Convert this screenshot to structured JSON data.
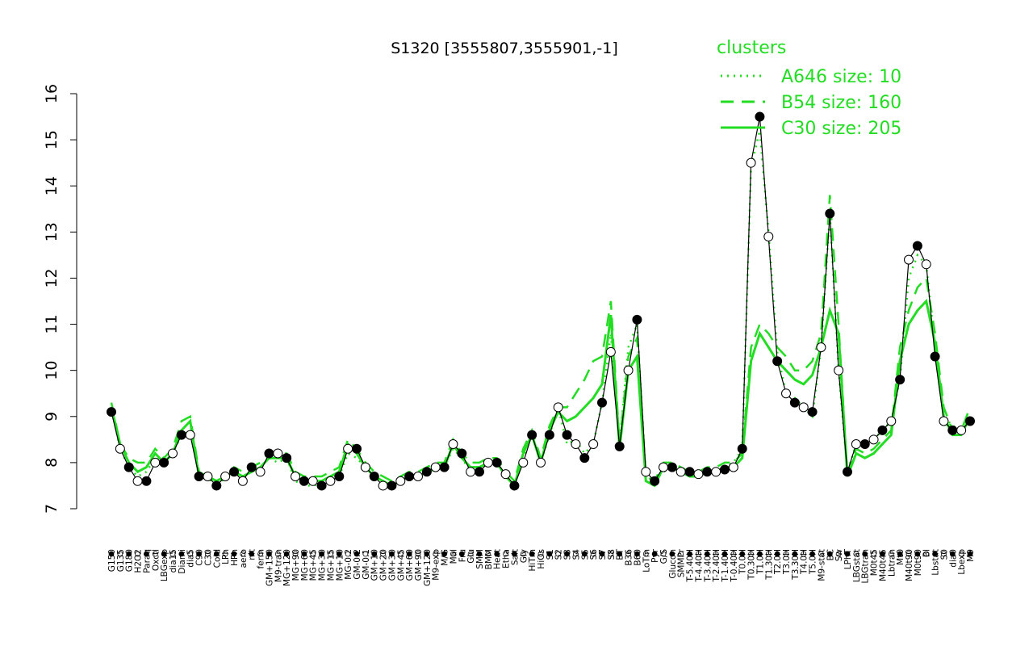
{
  "chart_data": {
    "type": "line",
    "title": "S1320 [3555807,3555901,-1]",
    "xlabel": "",
    "ylabel": "",
    "ylim": [
      7,
      16
    ],
    "yticks": [
      7,
      8,
      9,
      10,
      11,
      12,
      13,
      14,
      15,
      16
    ],
    "categories": [
      "G150",
      "G135",
      "G180",
      "H2O2",
      "Paraq",
      "Oxctl",
      "LBGexp",
      "dia15",
      "Diami",
      "dia5",
      "C90",
      "C30",
      "Cold",
      "LPh",
      "HPh",
      "aero",
      "nit",
      "ferm",
      "GM+150",
      "M9-tran",
      "MG+120",
      "MG+90",
      "MG+60",
      "MG+45",
      "MG+30",
      "MG+15",
      "MG+10",
      "MG-0.2",
      "GM-0.2",
      "GM-0.1",
      "GM+10",
      "GM+20",
      "GM+30",
      "GM+45",
      "GM+60",
      "GM+90",
      "GM+120",
      "M9-exp",
      "M/G",
      "Mal",
      "Fru",
      "Glu",
      "SMM",
      "BMM",
      "Heat",
      "Etha",
      "Salt",
      "Gly",
      "HiTm",
      "HiOs",
      "S1",
      "S2",
      "S3",
      "S4",
      "S5",
      "S6",
      "S7",
      "S8",
      "BT",
      "B36",
      "B60",
      "LoTm",
      "Pyr",
      "G/S",
      "Glucon",
      "SMMPr",
      "T-5.40H",
      "T-4.40H",
      "T-3.40H",
      "T-2.40H",
      "T-1.40H",
      "T-0.40H",
      "T0.0H",
      "T0.30H",
      "T1.0H",
      "T1.30H",
      "T2.0H",
      "T3.0H",
      "T3.30H",
      "T4.0H",
      "T5.0H",
      "M9-stat",
      "BC",
      "Sw",
      "LPhT",
      "LBGstat",
      "LBGtran",
      "M0t45",
      "M40t45",
      "Lbtran",
      "Mt0",
      "M40t90",
      "M0t90",
      "Bl",
      "Lbstat",
      "S0",
      "dia0",
      "Lbexp",
      "M9"
    ],
    "series": [
      {
        "name": "A646 size: 10",
        "style": "dotted",
        "values": [
          9.2,
          8.3,
          7.9,
          7.7,
          7.8,
          8.1,
          8.0,
          8.2,
          8.6,
          8.7,
          7.7,
          7.65,
          7.55,
          7.65,
          7.8,
          7.7,
          7.8,
          7.9,
          8.1,
          8.0,
          8.1,
          7.6,
          7.5,
          7.5,
          7.55,
          7.6,
          7.7,
          8.2,
          8.1,
          7.9,
          7.7,
          7.6,
          7.5,
          7.6,
          7.7,
          7.75,
          7.8,
          7.85,
          7.9,
          8.3,
          8.1,
          7.8,
          7.85,
          8.0,
          8.0,
          7.7,
          7.5,
          8.1,
          8.6,
          8.0,
          8.6,
          9.2,
          8.4,
          8.5,
          8.2,
          8.4,
          9.3,
          10.8,
          8.4,
          10.5,
          11.0,
          7.7,
          7.6,
          7.8,
          7.9,
          7.8,
          7.7,
          7.75,
          7.8,
          7.85,
          7.9,
          8.0,
          8.3,
          14.4,
          15.2,
          13.0,
          10.4,
          9.5,
          9.4,
          9.2,
          9.0,
          10.5,
          13.4,
          10.0,
          7.8,
          8.4,
          8.4,
          8.5,
          8.7,
          8.9,
          9.8,
          12.0,
          12.5,
          12.3,
          10.5,
          9.0,
          8.8,
          8.7,
          8.9
        ]
      },
      {
        "name": "B54 size: 160",
        "style": "dashed",
        "values": [
          9.3,
          8.4,
          8.1,
          8.0,
          8.0,
          8.3,
          8.1,
          8.3,
          8.9,
          9.0,
          7.8,
          7.7,
          7.6,
          7.7,
          7.9,
          7.8,
          7.9,
          8.0,
          8.2,
          8.2,
          8.2,
          7.8,
          7.7,
          7.7,
          7.7,
          7.8,
          7.9,
          8.5,
          8.3,
          8.0,
          7.8,
          7.7,
          7.6,
          7.7,
          7.8,
          7.8,
          7.9,
          8.0,
          8.0,
          8.5,
          8.2,
          8.0,
          8.0,
          8.1,
          8.1,
          7.8,
          7.6,
          8.3,
          8.7,
          8.1,
          8.8,
          9.2,
          9.2,
          9.5,
          9.8,
          10.2,
          10.3,
          11.5,
          8.4,
          10.3,
          10.7,
          7.7,
          7.6,
          8.0,
          8.0,
          7.9,
          7.8,
          7.8,
          7.9,
          7.9,
          8.0,
          8.0,
          8.2,
          10.5,
          11.0,
          10.8,
          10.5,
          10.3,
          10.0,
          10.0,
          10.2,
          10.8,
          13.8,
          11.0,
          7.7,
          8.3,
          8.2,
          8.3,
          8.5,
          8.7,
          10.5,
          11.3,
          11.8,
          12.0,
          10.8,
          9.2,
          8.7,
          8.7,
          9.2
        ]
      },
      {
        "name": "C30 size: 205",
        "style": "solid",
        "values": [
          9.2,
          8.4,
          8.0,
          7.8,
          7.9,
          8.2,
          8.0,
          8.2,
          8.7,
          8.9,
          7.7,
          7.7,
          7.6,
          7.7,
          7.8,
          7.7,
          7.8,
          7.9,
          8.1,
          8.1,
          8.1,
          7.7,
          7.6,
          7.6,
          7.6,
          7.7,
          7.8,
          8.4,
          8.2,
          7.9,
          7.7,
          7.6,
          7.5,
          7.6,
          7.7,
          7.7,
          7.8,
          7.9,
          7.9,
          8.4,
          8.1,
          7.9,
          7.9,
          8.0,
          8.0,
          7.7,
          7.5,
          8.2,
          8.6,
          8.0,
          8.7,
          9.1,
          8.9,
          9.0,
          9.2,
          9.4,
          9.7,
          11.2,
          8.3,
          10.0,
          10.3,
          7.6,
          7.5,
          7.9,
          7.9,
          7.8,
          7.7,
          7.7,
          7.8,
          7.8,
          7.9,
          7.9,
          8.1,
          10.2,
          10.8,
          10.5,
          10.2,
          10.0,
          9.8,
          9.7,
          9.9,
          10.5,
          11.3,
          10.8,
          7.7,
          8.2,
          8.1,
          8.2,
          8.4,
          8.6,
          10.2,
          11.0,
          11.3,
          11.5,
          10.6,
          9.0,
          8.6,
          8.6,
          9.0
        ]
      },
      {
        "name": "S1320",
        "style": "points",
        "values": [
          9.1,
          8.3,
          7.9,
          7.6,
          7.6,
          8.0,
          8.0,
          8.2,
          8.6,
          8.6,
          7.7,
          7.7,
          7.5,
          7.7,
          7.8,
          7.6,
          7.9,
          7.8,
          8.2,
          8.2,
          8.1,
          7.7,
          7.6,
          7.6,
          7.5,
          7.6,
          7.7,
          8.3,
          8.3,
          7.9,
          7.7,
          7.5,
          7.5,
          7.6,
          7.7,
          7.7,
          7.8,
          7.9,
          7.9,
          8.4,
          8.2,
          7.8,
          7.8,
          8.0,
          8.0,
          7.75,
          7.5,
          8.0,
          8.6,
          8.0,
          8.6,
          9.2,
          8.6,
          8.4,
          8.1,
          8.4,
          9.3,
          10.4,
          8.35,
          10.0,
          11.1,
          7.8,
          7.6,
          7.9,
          7.9,
          7.8,
          7.8,
          7.75,
          7.8,
          7.8,
          7.85,
          7.9,
          8.3,
          14.5,
          15.5,
          12.9,
          10.2,
          9.5,
          9.3,
          9.2,
          9.1,
          10.5,
          13.4,
          10.0,
          7.8,
          8.4,
          8.4,
          8.5,
          8.7,
          8.9,
          9.8,
          12.4,
          12.7,
          12.3,
          10.3,
          8.9,
          8.7,
          8.7,
          8.9
        ]
      }
    ],
    "legend": {
      "title": "clusters",
      "placement": "top-right",
      "color": "#22dd22"
    },
    "grid": false
  }
}
